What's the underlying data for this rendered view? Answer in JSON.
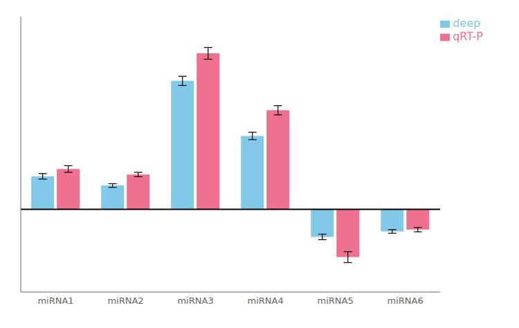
{
  "chart_data": {
    "type": "bar",
    "categories": [
      "miRNA1",
      "miRNA2",
      "miRNA3",
      "miRNA4",
      "miRNA5",
      "miRNA6"
    ],
    "series": [
      {
        "name": "deep",
        "color": "#82C8E8",
        "values": [
          0.18,
          0.13,
          0.7,
          0.4,
          -0.15,
          -0.12
        ],
        "errors": [
          0.015,
          0.01,
          0.025,
          0.02,
          0.015,
          0.01
        ]
      },
      {
        "name": "qRT-P",
        "color": "#F07090",
        "values": [
          0.22,
          0.19,
          0.85,
          0.54,
          -0.26,
          -0.11
        ],
        "errors": [
          0.018,
          0.012,
          0.032,
          0.025,
          0.03,
          0.012
        ]
      }
    ],
    "ylim": [
      -0.45,
      1.05
    ],
    "tick_labels": "x",
    "legend": "upper right"
  }
}
